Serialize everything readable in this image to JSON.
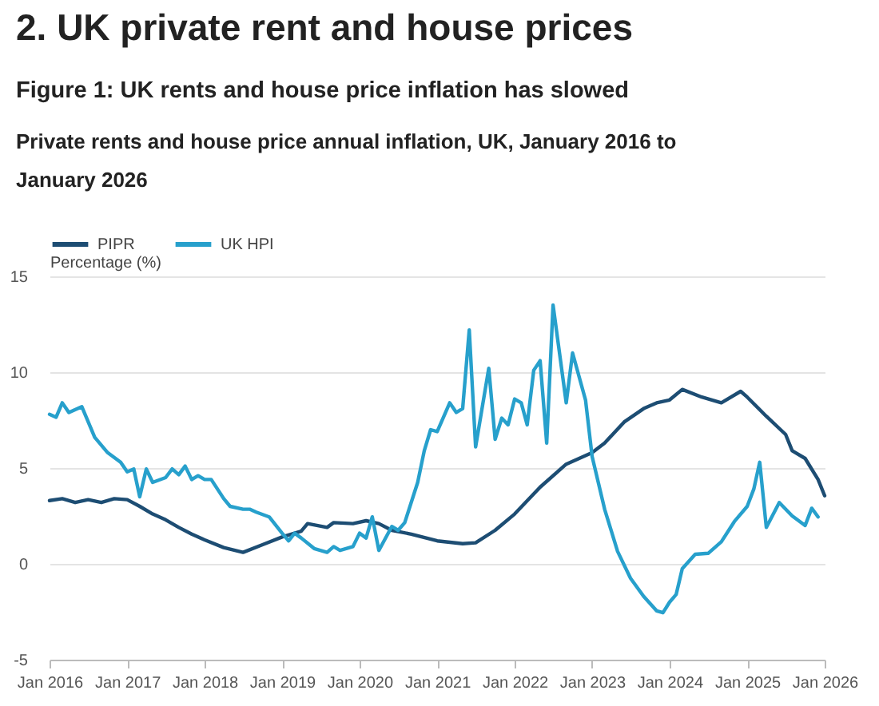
{
  "chart_data": {
    "type": "line",
    "title": "Figure 1: UK rents and house price inflation has slowed",
    "subtitle": "Private rents and house price annual inflation, UK, January 2016 to January 2026",
    "annotations": [
      "2.  UK private rent and house prices"
    ],
    "ylabel": "Percentage (%)",
    "xlim": [
      "2016-01",
      "2026-01"
    ],
    "xticks": [
      {
        "value": "2016-01",
        "label": "Jan 2016"
      },
      {
        "value": "2017-01",
        "label": "Jan 2017"
      },
      {
        "value": "2018-01",
        "label": "Jan 2018"
      },
      {
        "value": "2019-01",
        "label": "Jan 2019"
      },
      {
        "value": "2020-01",
        "label": "Jan 2020"
      },
      {
        "value": "2021-01",
        "label": "Jan 2021"
      },
      {
        "value": "2022-01",
        "label": "Jan 2022"
      },
      {
        "value": "2023-01",
        "label": "Jan 2023"
      },
      {
        "value": "2024-01",
        "label": "Jan 2024"
      },
      {
        "value": "2025-01",
        "label": "Jan 2025"
      },
      {
        "value": "2026-01",
        "label": "Jan 2026"
      }
    ],
    "ylim": [
      -5,
      15
    ],
    "yticks": [
      -5,
      0,
      5,
      10,
      15
    ],
    "grid": "y",
    "legend": "top left",
    "series": [
      {
        "name": "PIPR",
        "color": "#1d4d73",
        "x": [
          "2016-01",
          "2016-03",
          "2016-05",
          "2016-07",
          "2016-09",
          "2016-11",
          "2017-01",
          "2017-03",
          "2017-05",
          "2017-07",
          "2017-09",
          "2017-11",
          "2018-01",
          "2018-04",
          "2018-07",
          "2018-10",
          "2019-01",
          "2019-04",
          "2019-05",
          "2019-08",
          "2019-09",
          "2019-12",
          "2020-02",
          "2020-04",
          "2020-06",
          "2020-09",
          "2021-01",
          "2021-05",
          "2021-07",
          "2021-10",
          "2022-01",
          "2022-05",
          "2022-09",
          "2023-01",
          "2023-03",
          "2023-06",
          "2023-09",
          "2023-11",
          "2024-01",
          "2024-03",
          "2024-06",
          "2024-09",
          "2024-12",
          "2025-01",
          "2025-04",
          "2025-07",
          "2025-08",
          "2025-10",
          "2025-12",
          "2026-01"
        ],
        "values": [
          3.3,
          3.4,
          3.2,
          3.35,
          3.2,
          3.4,
          3.35,
          3.0,
          2.6,
          2.3,
          1.9,
          1.55,
          1.25,
          0.85,
          0.6,
          1.0,
          1.4,
          1.7,
          2.1,
          1.9,
          2.15,
          2.1,
          2.25,
          2.1,
          1.75,
          1.55,
          1.2,
          1.05,
          1.1,
          1.75,
          2.6,
          4.0,
          5.2,
          5.8,
          6.3,
          7.4,
          8.1,
          8.4,
          8.55,
          9.1,
          8.7,
          8.4,
          9.0,
          8.7,
          7.7,
          6.75,
          5.9,
          5.5,
          4.4,
          3.55
        ]
      },
      {
        "name": "UK HPI",
        "color": "#27a0cc",
        "x": [
          "2016-01",
          "2016-02",
          "2016-03",
          "2016-04",
          "2016-06",
          "2016-08",
          "2016-10",
          "2016-12",
          "2017-01",
          "2017-02",
          "2017-03",
          "2017-04",
          "2017-05",
          "2017-07",
          "2017-08",
          "2017-09",
          "2017-10",
          "2017-11",
          "2017-12",
          "2018-01",
          "2018-02",
          "2018-04",
          "2018-05",
          "2018-07",
          "2018-08",
          "2018-09",
          "2018-11",
          "2019-01",
          "2019-02",
          "2019-03",
          "2019-04",
          "2019-06",
          "2019-08",
          "2019-09",
          "2019-10",
          "2019-12",
          "2020-01",
          "2020-02",
          "2020-03",
          "2020-04",
          "2020-06",
          "2020-07",
          "2020-08",
          "2020-10",
          "2020-11",
          "2020-12",
          "2021-01",
          "2021-03",
          "2021-04",
          "2021-05",
          "2021-06",
          "2021-07",
          "2021-09",
          "2021-10",
          "2021-11",
          "2021-12",
          "2022-01",
          "2022-02",
          "2022-03",
          "2022-04",
          "2022-05",
          "2022-06",
          "2022-07",
          "2022-09",
          "2022-10",
          "2022-12",
          "2023-01",
          "2023-03",
          "2023-05",
          "2023-07",
          "2023-09",
          "2023-11",
          "2023-12",
          "2024-01",
          "2024-02",
          "2024-03",
          "2024-05",
          "2024-07",
          "2024-09",
          "2024-11",
          "2025-01",
          "2025-02",
          "2025-03",
          "2025-04",
          "2025-06",
          "2025-08",
          "2025-10",
          "2025-11",
          "2025-12"
        ],
        "values": [
          7.8,
          7.65,
          8.4,
          7.9,
          8.2,
          6.6,
          5.8,
          5.3,
          4.8,
          4.95,
          3.5,
          4.95,
          4.25,
          4.5,
          4.95,
          4.65,
          5.1,
          4.4,
          4.6,
          4.4,
          4.4,
          3.4,
          3.0,
          2.85,
          2.85,
          2.7,
          2.45,
          1.6,
          1.2,
          1.6,
          1.35,
          0.8,
          0.6,
          0.9,
          0.7,
          0.9,
          1.6,
          1.35,
          2.45,
          0.7,
          1.95,
          1.75,
          2.15,
          4.25,
          5.9,
          7.0,
          6.9,
          8.4,
          7.9,
          8.1,
          12.2,
          6.1,
          10.2,
          6.5,
          7.6,
          7.25,
          8.6,
          8.4,
          7.25,
          10.1,
          10.6,
          6.3,
          13.5,
          8.4,
          11.0,
          8.55,
          5.6,
          2.85,
          0.65,
          -0.75,
          -1.7,
          -2.45,
          -2.55,
          -2.0,
          -1.6,
          -0.25,
          0.5,
          0.55,
          1.15,
          2.2,
          3.0,
          3.9,
          5.3,
          1.9,
          3.2,
          2.5,
          2.0,
          2.9,
          2.45
        ]
      }
    ]
  }
}
